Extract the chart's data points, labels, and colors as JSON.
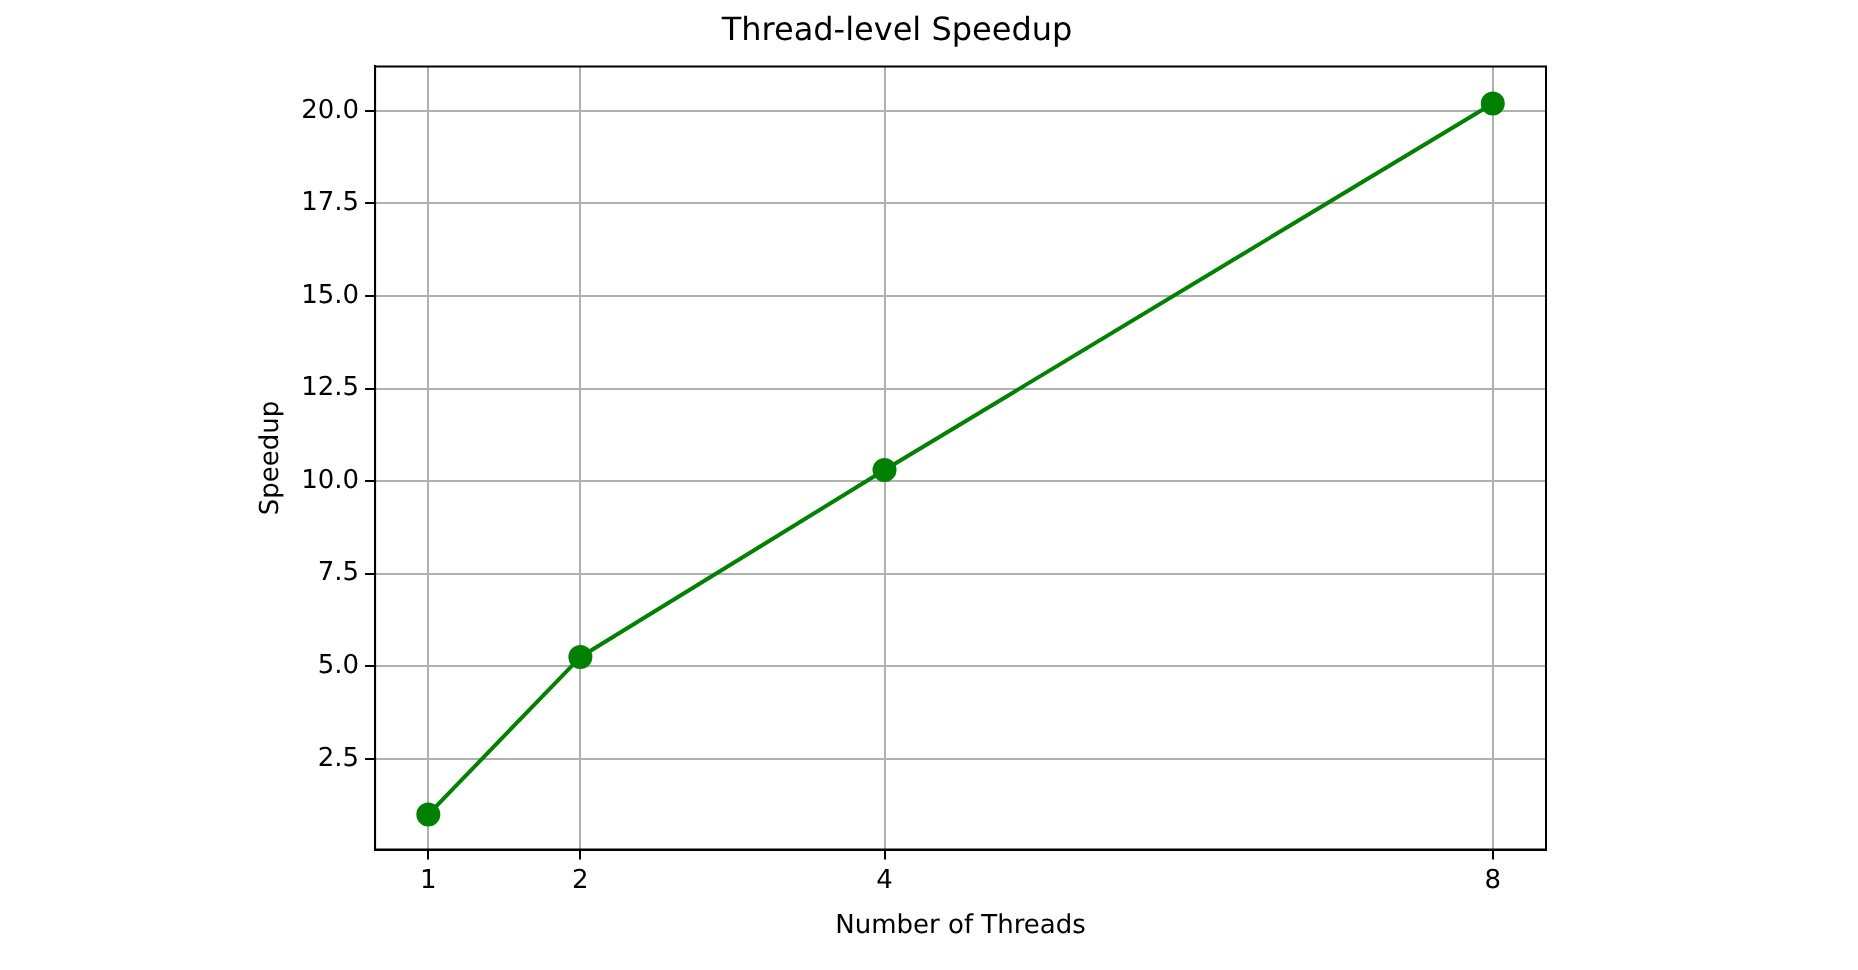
{
  "chart_data": {
    "type": "line",
    "title": "Thread-level Speedup",
    "xlabel": "Number of Threads",
    "ylabel": "Speedup",
    "x": [
      1,
      2,
      4,
      8
    ],
    "series": [
      {
        "color": "#008000",
        "values": [
          1.0,
          5.25,
          10.3,
          20.2
        ]
      }
    ],
    "xlim": [
      0.65,
      8.35
    ],
    "xticks": [
      1,
      2,
      4,
      8
    ],
    "ylim": [
      0.05,
      21.2
    ],
    "yticks": [
      2.5,
      {
        "value": 5,
        "label": "5.0"
      },
      7.5,
      {
        "value": 10,
        "label": "10.0"
      },
      12.5,
      {
        "value": 15,
        "label": "15.0"
      },
      17.5,
      {
        "value": 20,
        "label": "20.0"
      }
    ],
    "grid": true,
    "marker": "circle",
    "line_style": "solid",
    "legend": false
  }
}
